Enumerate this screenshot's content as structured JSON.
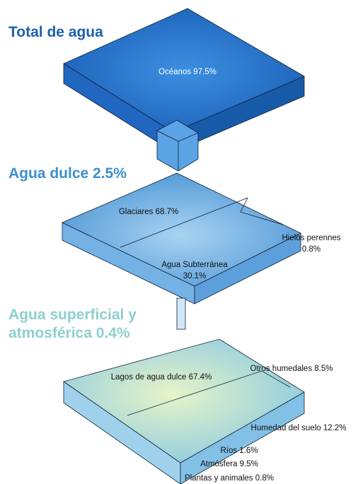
{
  "sections": [
    {
      "title": [
        "Total de agua"
      ],
      "items": [
        "Océanos 97.5%"
      ]
    },
    {
      "title": [
        "Agua dulce 2.5%"
      ],
      "items": [
        "Glaciares 68.7%",
        [
          "Hielos perennes",
          "0.8%"
        ],
        [
          "Agua Subterránea",
          "30.1%"
        ]
      ]
    },
    {
      "title": [
        "Agua superficial y",
        "atmosférica 0.4%"
      ],
      "items": [
        "Lagos de agua dulce 67.4%",
        "Otros humedales 8.5%",
        "Humedad del suelo 12.2%",
        "Ríos 1.6%",
        "Atmósfera 9.5%",
        "Plantas y animales 0.8%"
      ]
    }
  ]
}
